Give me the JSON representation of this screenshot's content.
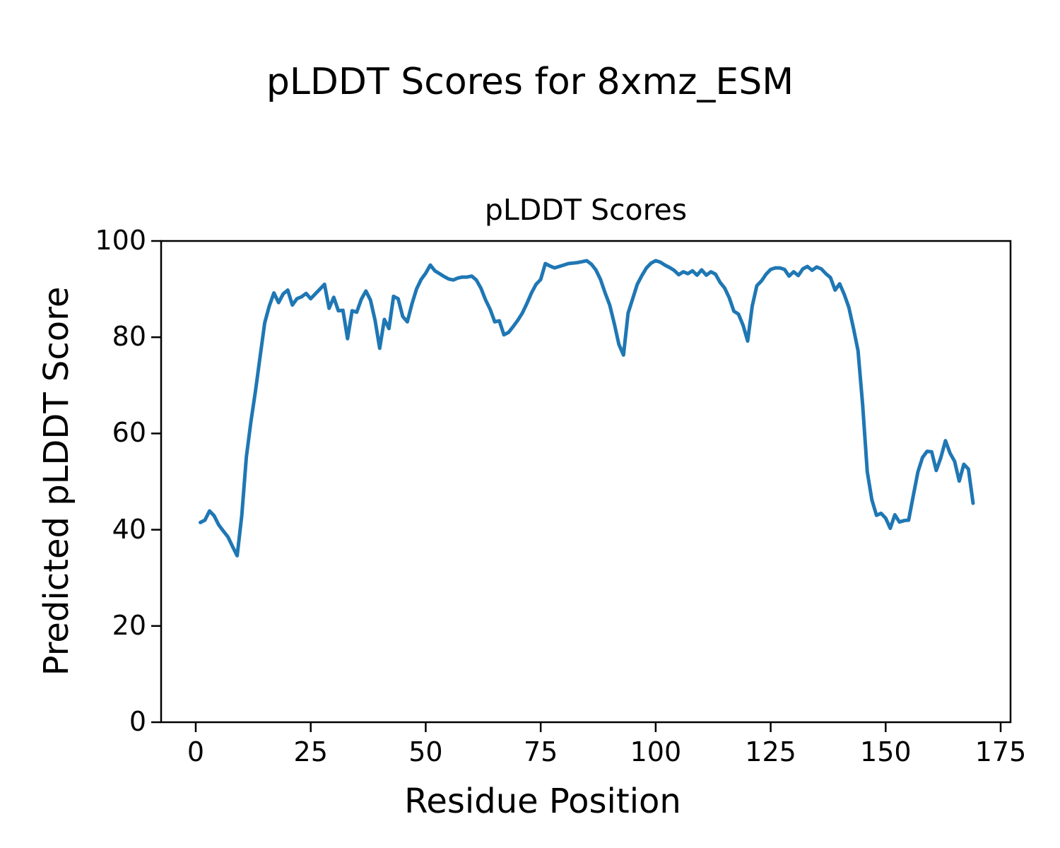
{
  "figure": {
    "suptitle": "pLDDT Scores for 8xmz_ESM"
  },
  "chart_data": {
    "type": "line",
    "title": "pLDDT Scores",
    "suptitle": "pLDDT Scores for 8xmz_ESM",
    "xlabel": "Residue Position",
    "ylabel": "Predicted pLDDT Score",
    "x_ticks": [
      0,
      25,
      50,
      75,
      100,
      125,
      150,
      175
    ],
    "y_ticks": [
      0,
      20,
      40,
      60,
      80,
      100
    ],
    "xlim": [
      -7.4,
      177.4
    ],
    "ylim": [
      0,
      100
    ],
    "grid": false,
    "legend": "none",
    "line_color": "#1f77b4",
    "frame_color": "#000000",
    "x_start": 1,
    "x_step": 1,
    "values": [
      41.5,
      42.0,
      43.9,
      42.9,
      41.0,
      39.7,
      38.5,
      36.5,
      34.6,
      42.9,
      55.1,
      62.5,
      68.9,
      76.0,
      83.0,
      86.5,
      89.2,
      87.2,
      89.0,
      89.8,
      86.7,
      88.0,
      88.4,
      89.1,
      88.0,
      89.0,
      90.0,
      91.0,
      86.0,
      88.3,
      85.5,
      85.6,
      79.7,
      85.5,
      85.2,
      87.9,
      89.6,
      87.7,
      83.5,
      77.7,
      83.7,
      81.8,
      88.5,
      88.0,
      84.3,
      83.2,
      86.9,
      90.0,
      92.0,
      93.3,
      95.0,
      93.8,
      93.2,
      92.6,
      92.1,
      91.9,
      92.3,
      92.5,
      92.5,
      92.7,
      91.9,
      90.2,
      87.8,
      85.8,
      83.2,
      83.4,
      80.5,
      81.0,
      82.2,
      83.5,
      85.0,
      87.0,
      89.2,
      91.0,
      92.0,
      95.3,
      94.8,
      94.4,
      94.7,
      95.0,
      95.3,
      95.4,
      95.5,
      95.7,
      95.9,
      95.2,
      94.0,
      92.0,
      89.2,
      86.7,
      82.8,
      78.5,
      76.3,
      85.0,
      88.0,
      91.0,
      92.8,
      94.4,
      95.4,
      95.9,
      95.6,
      95.0,
      94.5,
      93.9,
      93.0,
      93.6,
      93.2,
      93.8,
      92.9,
      94.0,
      92.9,
      93.6,
      93.1,
      91.4,
      90.2,
      88.2,
      85.4,
      84.8,
      82.5,
      79.2,
      86.5,
      90.7,
      91.7,
      93.1,
      94.1,
      94.4,
      94.4,
      94.1,
      92.7,
      93.6,
      92.8,
      94.2,
      94.7,
      93.9,
      94.6,
      94.2,
      93.2,
      92.4,
      89.8,
      91.1,
      88.9,
      86.2,
      81.9,
      77.2,
      66.0,
      52.0,
      46.2,
      43.0,
      43.4,
      42.4,
      40.3,
      43.1,
      41.6,
      41.9,
      42.0,
      47.0,
      52.0,
      55.0,
      56.3,
      56.2,
      52.3,
      55.0,
      58.5,
      55.9,
      54.2,
      50.1,
      53.6,
      52.6,
      45.5
    ]
  }
}
